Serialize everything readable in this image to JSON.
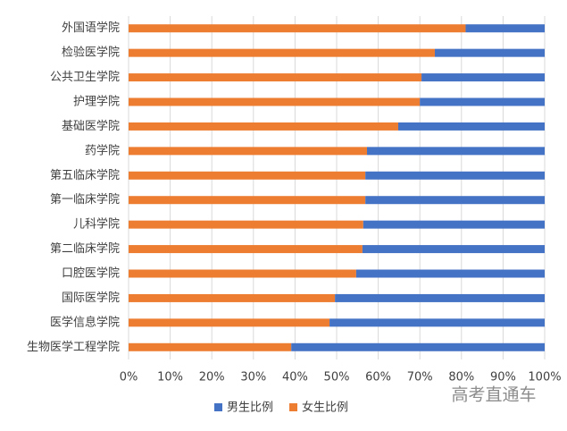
{
  "chart_data": {
    "type": "stacked-bar-horizontal",
    "categories": [
      "外国语学院",
      "检验医学院",
      "公共卫生学院",
      "护理学院",
      "基础医学院",
      "药学院",
      "第五临床学院",
      "第一临床学院",
      "儿科学院",
      "第二临床学院",
      "口腔医学院",
      "国际医学院",
      "医学信息学院",
      "生物医学工程学院"
    ],
    "series": [
      {
        "name": "男生比例",
        "color": "#4472c4",
        "values": [
          19,
          26.4,
          29.6,
          30,
          35.2,
          42.7,
          43.1,
          43.1,
          43.6,
          43.8,
          45.3,
          50.4,
          51.7,
          60.9
        ]
      },
      {
        "name": "女生比例",
        "color": "#ed7d31",
        "values": [
          81,
          73.6,
          70.4,
          70,
          64.8,
          57.3,
          56.9,
          56.9,
          56.4,
          56.2,
          54.7,
          49.6,
          48.3,
          39.1
        ]
      }
    ],
    "xlim": [
      0,
      100
    ],
    "xticks": [
      {
        "value": 0,
        "label": "0%"
      },
      {
        "value": 10,
        "label": "10%"
      },
      {
        "value": 20,
        "label": "20%"
      },
      {
        "value": 30,
        "label": "30%"
      },
      {
        "value": 40,
        "label": "40%"
      },
      {
        "value": 50,
        "label": "50%"
      },
      {
        "value": 60,
        "label": "60%"
      },
      {
        "value": 70,
        "label": "70%"
      },
      {
        "value": 80,
        "label": "80%"
      },
      {
        "value": 90,
        "label": "90%"
      },
      {
        "value": 100,
        "label": "100%"
      }
    ],
    "grid": true,
    "legend": "bottom",
    "watermark": "高考直通车"
  }
}
